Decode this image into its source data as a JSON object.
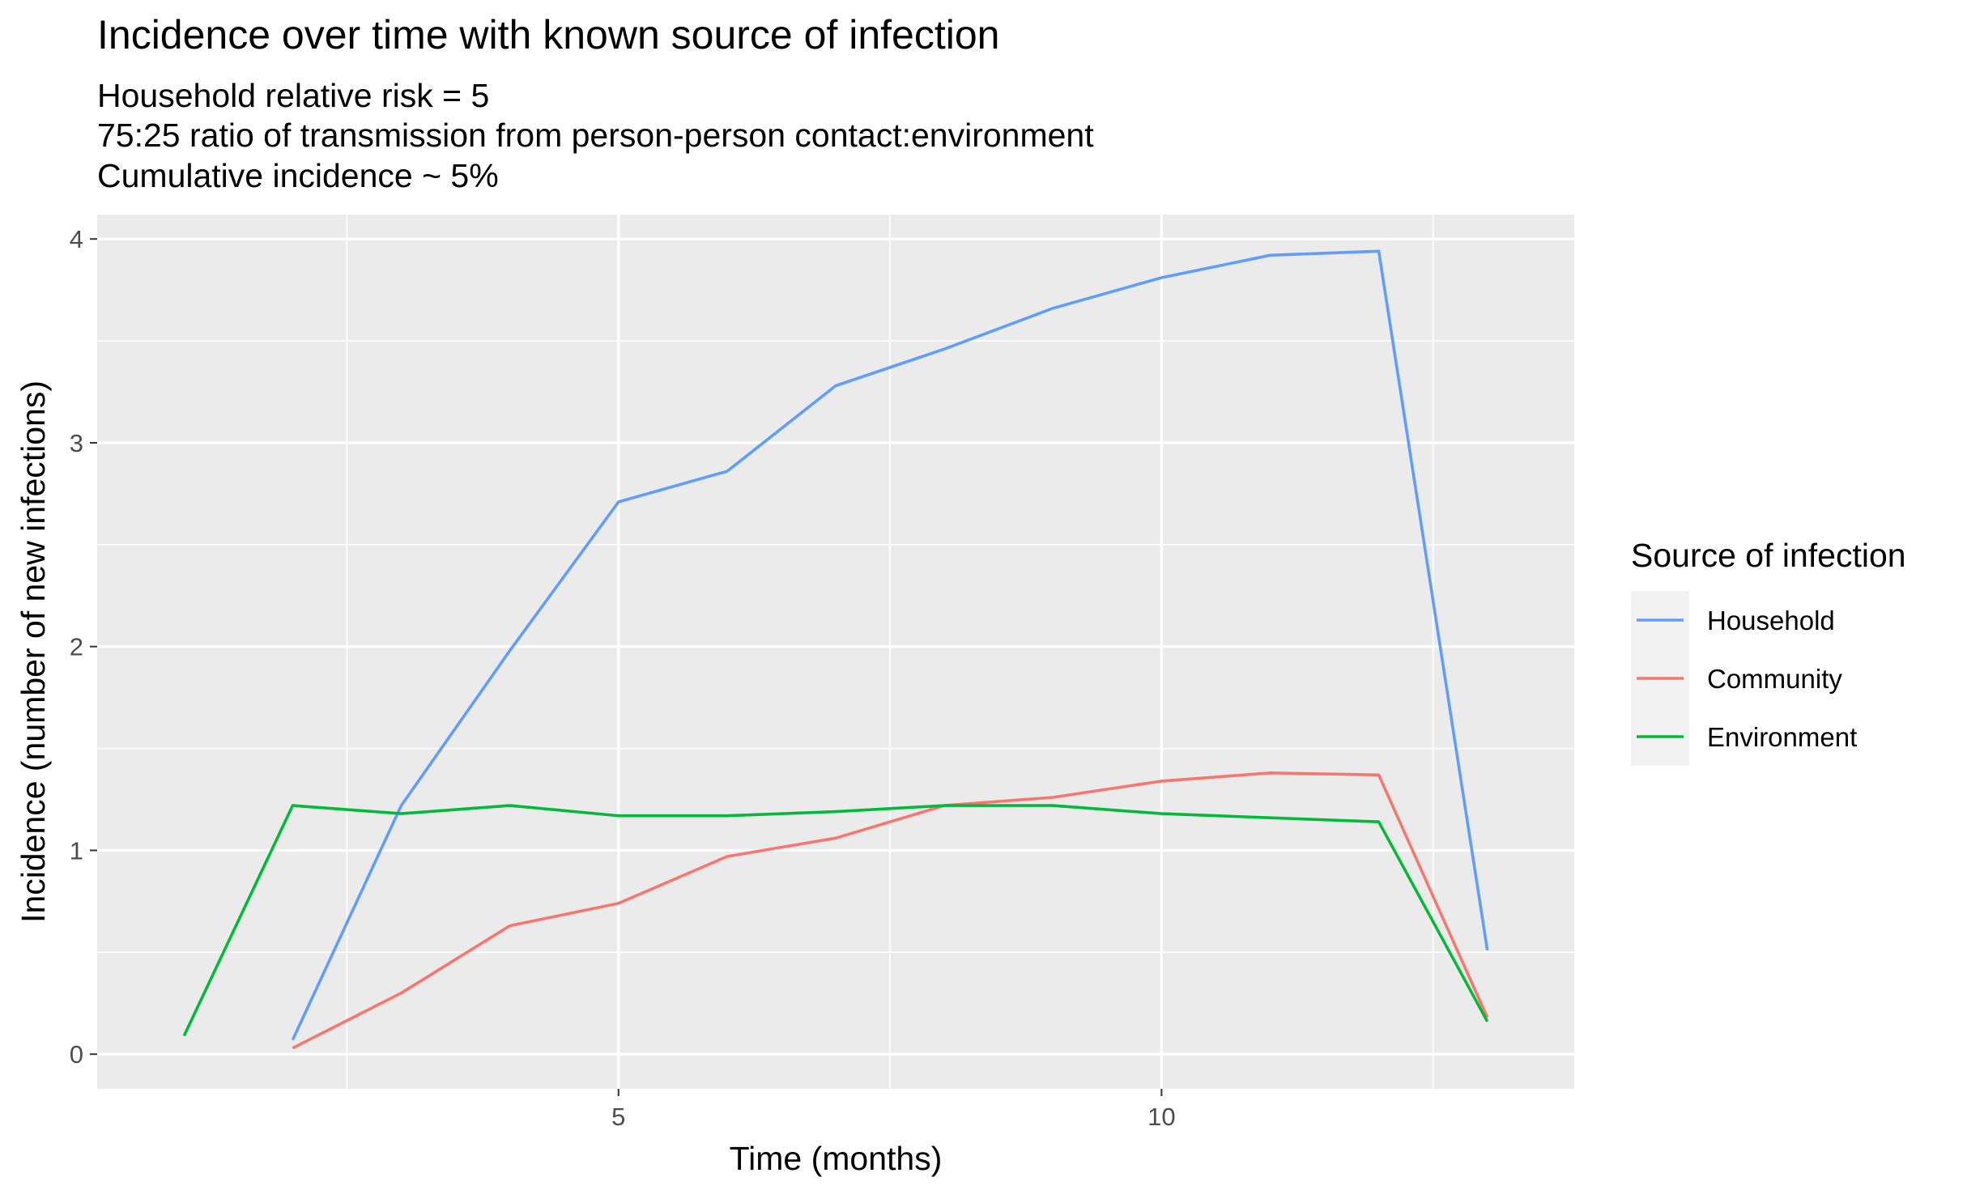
{
  "chart_data": {
    "type": "line",
    "title": "Incidence over time with known source of infection",
    "subtitle_lines": [
      "Household relative risk = 5",
      "75:25 ratio of transmission from person-person contact:environment",
      "Cumulative incidence ~ 5%"
    ],
    "xlabel": "Time (months)",
    "ylabel": "Incidence (number of new infections)",
    "xlim": [
      0.2,
      13.8
    ],
    "ylim": [
      -0.17,
      4.12
    ],
    "x_ticks": [
      5,
      10
    ],
    "x_tick_labels": [
      "5",
      "10"
    ],
    "y_ticks": [
      0,
      1,
      2,
      3,
      4
    ],
    "y_tick_labels": [
      "0",
      "1",
      "2",
      "3",
      "4"
    ],
    "grid": true,
    "legend": {
      "title": "Source of infection",
      "position": "right"
    },
    "series": [
      {
        "name": "Household",
        "color": "#619CFF",
        "x": [
          2,
          3,
          4,
          5,
          6,
          7,
          8,
          9,
          10,
          11,
          12,
          13
        ],
        "y": [
          0.07,
          1.22,
          1.98,
          2.71,
          2.86,
          3.28,
          3.46,
          3.66,
          3.81,
          3.92,
          3.94,
          0.51
        ]
      },
      {
        "name": "Community",
        "color": "#F8766D",
        "x": [
          2,
          3,
          4,
          5,
          6,
          7,
          8,
          9,
          10,
          11,
          12,
          13
        ],
        "y": [
          0.03,
          0.3,
          0.63,
          0.74,
          0.97,
          1.06,
          1.22,
          1.26,
          1.34,
          1.38,
          1.37,
          0.18
        ]
      },
      {
        "name": "Environment",
        "color": "#00BA38",
        "x": [
          1,
          2,
          3,
          4,
          5,
          6,
          7,
          8,
          9,
          10,
          11,
          12,
          13
        ],
        "y": [
          0.09,
          1.22,
          1.18,
          1.22,
          1.17,
          1.17,
          1.19,
          1.22,
          1.22,
          1.18,
          1.16,
          1.14,
          0.16
        ]
      }
    ]
  }
}
